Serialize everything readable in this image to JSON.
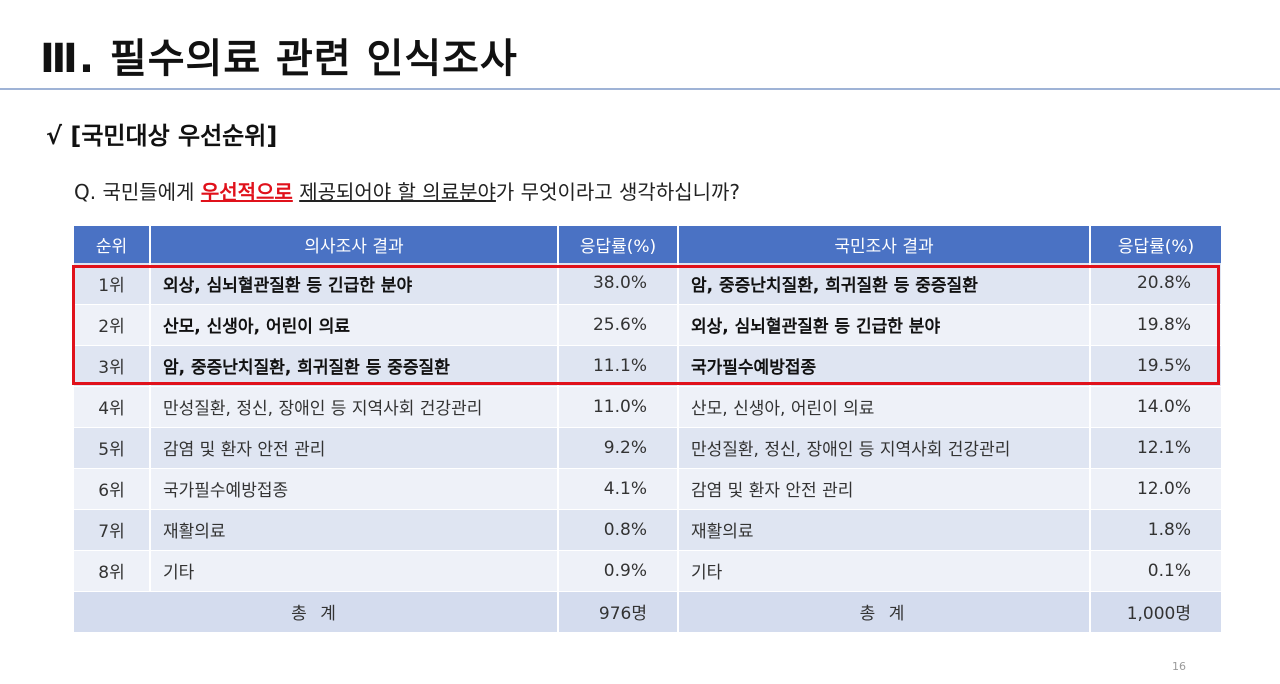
{
  "title": "Ⅲ. 필수의료 관련 인식조사",
  "section": "√ [국민대상 우선순위]",
  "question": {
    "prefix": "Q. 국민들에게 ",
    "highlight": "우선적으로",
    "space": " ",
    "underlined": "제공되어야 할 의료분야",
    "suffix": "가 무엇이라고 생각하십니까?"
  },
  "table": {
    "headers": [
      "순위",
      "의사조사 결과",
      "응답률(%)",
      "국민조사 결과",
      "응답률(%)"
    ],
    "rows": [
      {
        "rank": "1위",
        "doctor": "외상, 심뇌혈관질환 등 긴급한 분야",
        "doctor_pct": "38.0%",
        "public": "암, 중증난치질환, 희귀질환 등 중증질환",
        "public_pct": "20.8%"
      },
      {
        "rank": "2위",
        "doctor": "산모, 신생아, 어린이 의료",
        "doctor_pct": "25.6%",
        "public": "외상, 심뇌혈관질환 등 긴급한 분야",
        "public_pct": "19.8%"
      },
      {
        "rank": "3위",
        "doctor": "암, 중증난치질환, 희귀질환 등 중증질환",
        "doctor_pct": "11.1%",
        "public": "국가필수예방접종",
        "public_pct": "19.5%"
      },
      {
        "rank": "4위",
        "doctor": "만성질환, 정신, 장애인 등 지역사회 건강관리",
        "doctor_pct": "11.0%",
        "public": "산모, 신생아, 어린이 의료",
        "public_pct": "14.0%"
      },
      {
        "rank": "5위",
        "doctor": "감염 및 환자 안전 관리",
        "doctor_pct": "9.2%",
        "public": "만성질환, 정신, 장애인 등 지역사회 건강관리",
        "public_pct": "12.1%"
      },
      {
        "rank": "6위",
        "doctor": "국가필수예방접종",
        "doctor_pct": "4.1%",
        "public": "감염 및 환자 안전 관리",
        "public_pct": "12.0%"
      },
      {
        "rank": "7위",
        "doctor": "재활의료",
        "doctor_pct": "0.8%",
        "public": "재활의료",
        "public_pct": "1.8%"
      },
      {
        "rank": "8위",
        "doctor": "기타",
        "doctor_pct": "0.9%",
        "public": "기타",
        "public_pct": "0.1%"
      }
    ],
    "total": {
      "label": "총 계",
      "doctor_total": "976명",
      "public_total": "1,000명"
    }
  },
  "page_number": "16",
  "colors": {
    "header_bg": "#4a72c4",
    "highlight_red": "#e0111b",
    "row_even": "#dfe5f2",
    "row_odd": "#eef1f8"
  }
}
